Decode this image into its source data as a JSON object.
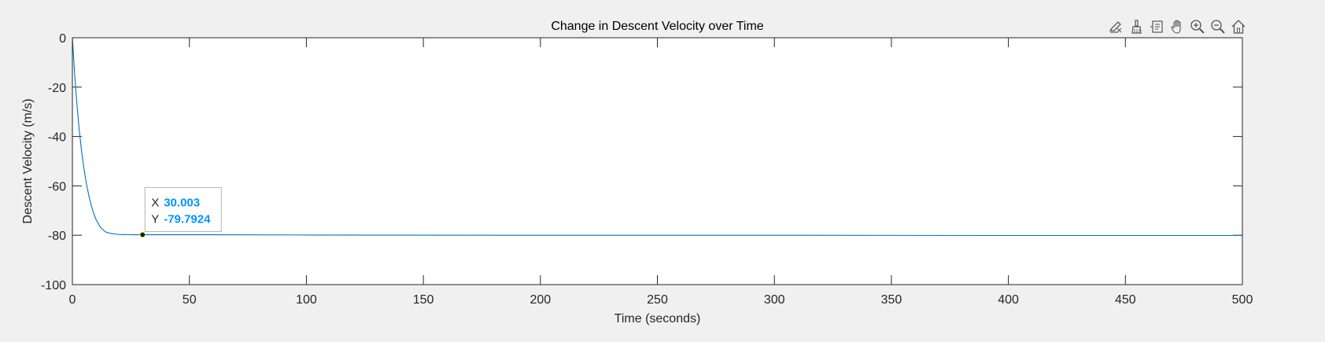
{
  "toolbar": {
    "buttons": [
      {
        "name": "edit-plot-icon"
      },
      {
        "name": "brush-icon"
      },
      {
        "name": "data-tips-icon"
      },
      {
        "name": "pan-hand-icon"
      },
      {
        "name": "zoom-in-icon"
      },
      {
        "name": "zoom-out-icon"
      },
      {
        "name": "home-restore-icon"
      }
    ]
  },
  "colors": {
    "background": "#f0f0f0",
    "axes_bg": "#ffffff",
    "line": "#0072bd",
    "datatip_value": "#0095ff"
  },
  "chart_data": {
    "type": "line",
    "title": "Change in Descent Velocity over Time",
    "xlabel": "Time (seconds)",
    "ylabel": "Descent Velocity (m/s)",
    "xlim": [
      0,
      500
    ],
    "ylim": [
      -100,
      0
    ],
    "xticks": [
      "0",
      "50",
      "100",
      "150",
      "200",
      "250",
      "300",
      "350",
      "400",
      "450",
      "500"
    ],
    "yticks": [
      "0",
      "-20",
      "-40",
      "-60",
      "-80",
      "-100"
    ],
    "grid": false,
    "series": [
      {
        "x": [
          0,
          1,
          2,
          3,
          4,
          5,
          6,
          7,
          8,
          9,
          10,
          12,
          14,
          16,
          18,
          20,
          22,
          24,
          26,
          28,
          30,
          40,
          60,
          100,
          200,
          300,
          400,
          500
        ],
        "y": [
          0,
          -15.2,
          -27.7,
          -38.0,
          -46.5,
          -53.4,
          -59.1,
          -63.8,
          -67.7,
          -70.9,
          -73.4,
          -76.8,
          -78.6,
          -79.2,
          -79.5,
          -79.7,
          -79.75,
          -79.78,
          -79.79,
          -79.79,
          -79.7924,
          -79.8,
          -79.8,
          -79.9,
          -80.0,
          -80.0,
          -80.1,
          -80.1
        ]
      }
    ],
    "datatip": {
      "x": 30.003,
      "y": -79.7924,
      "x_label": "X",
      "y_label": "Y",
      "x_text": "30.003",
      "y_text": "-79.7924"
    }
  }
}
